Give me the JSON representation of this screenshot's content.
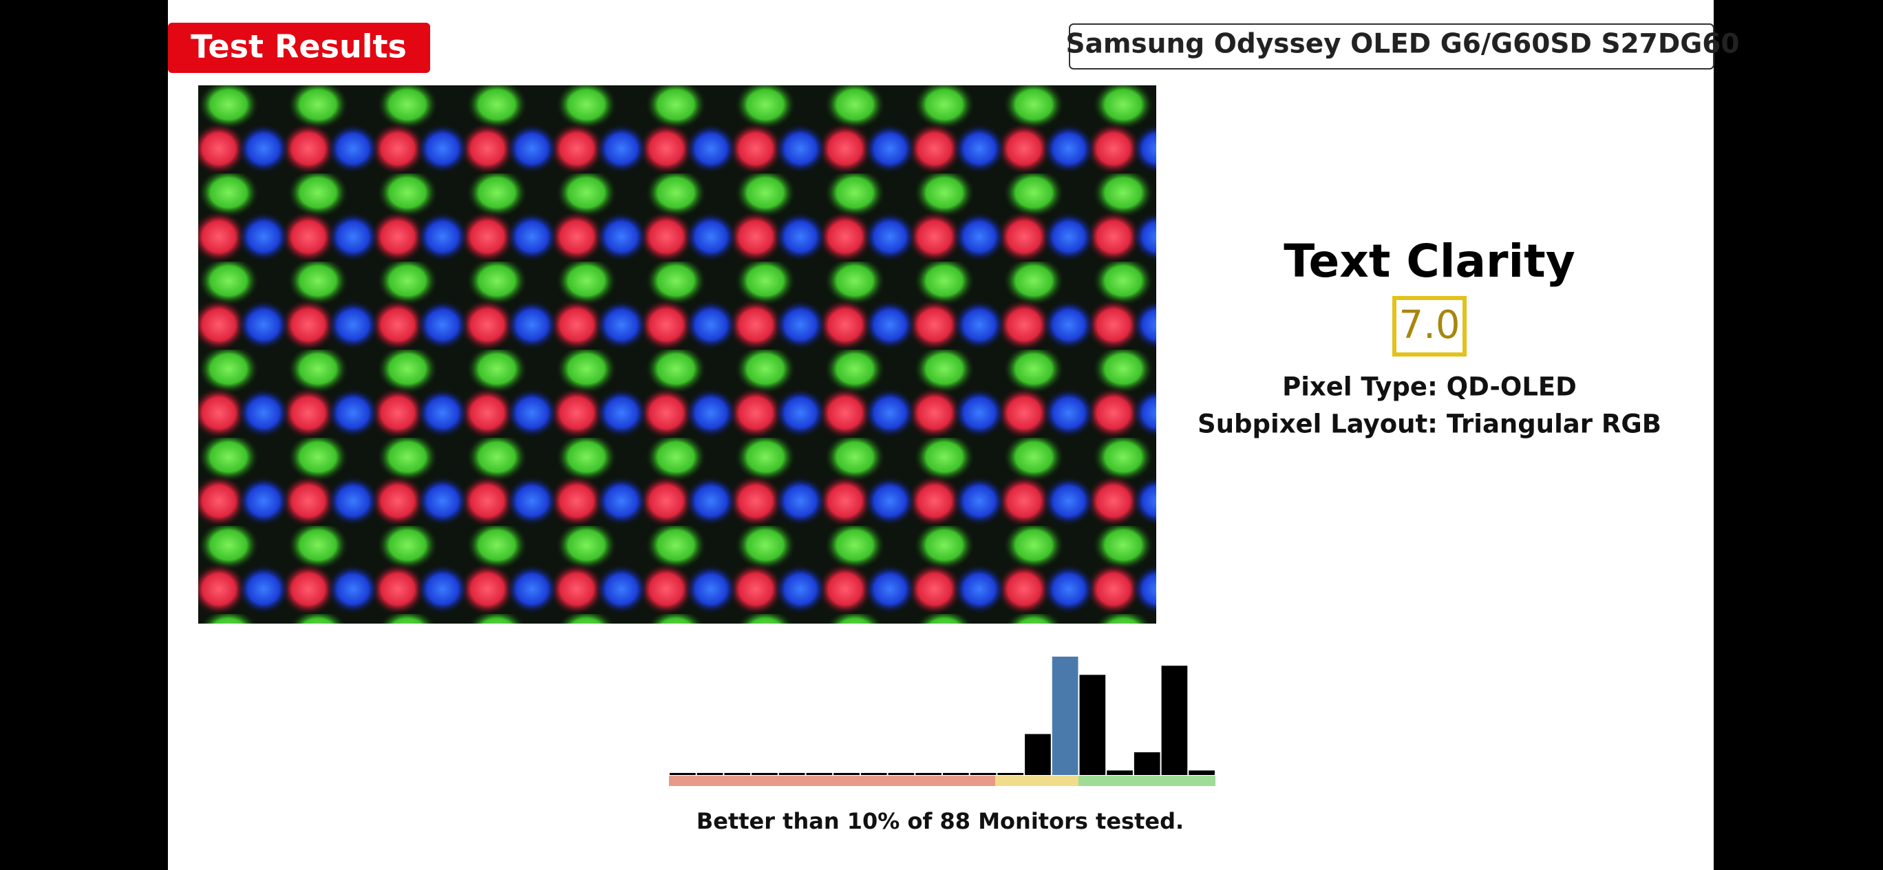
{
  "header": {
    "badge": "Test Results",
    "product": "Samsung Odyssey OLED G6/G60SD S27DG60"
  },
  "metric": {
    "title": "Text Clarity",
    "score": "7.0",
    "pixel_type": "Pixel Type: QD-OLED",
    "subpixel_layout": "Subpixel Layout: Triangular RGB"
  },
  "chart_data": {
    "type": "bar",
    "values": [
      0,
      0,
      0,
      0,
      0,
      0,
      0,
      0,
      0,
      0,
      0,
      0,
      0,
      9,
      26,
      22,
      1,
      5,
      24,
      1
    ],
    "colors": [
      "#000000",
      "#000000",
      "#000000",
      "#000000",
      "#000000",
      "#000000",
      "#000000",
      "#000000",
      "#000000",
      "#000000",
      "#000000",
      "#000000",
      "#000000",
      "#000000",
      "#4a7aab",
      "#000000",
      "#000000",
      "#000000",
      "#000000",
      "#000000"
    ],
    "caption": "Better than 10% of 88 Monitors tested."
  }
}
